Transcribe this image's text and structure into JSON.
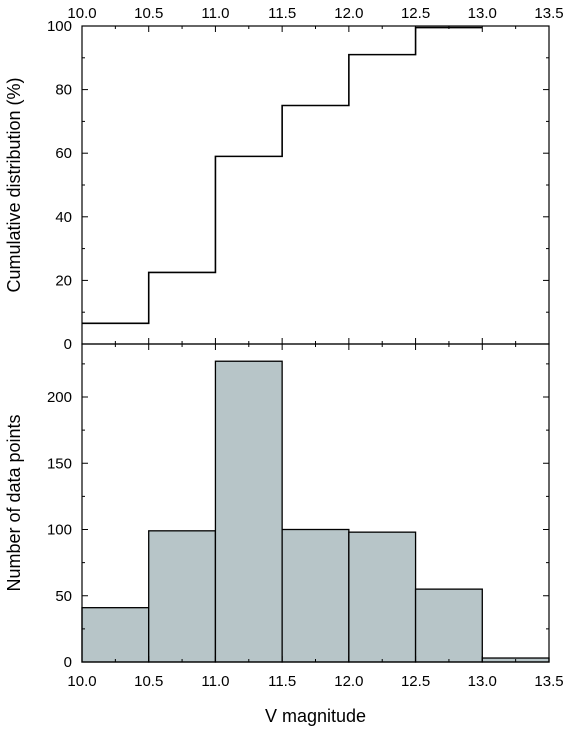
{
  "chart_data": [
    {
      "type": "line",
      "step": true,
      "title": "",
      "xlabel": "",
      "ylabel": "Cumulative distribution (%)",
      "xlim": [
        10.0,
        13.5
      ],
      "ylim": [
        0,
        100
      ],
      "xticks": [
        "10.0",
        "10.5",
        "11.0",
        "11.5",
        "12.0",
        "12.5",
        "13.0",
        "13.5"
      ],
      "yticks": [
        "0",
        "20",
        "40",
        "60",
        "80",
        "100"
      ],
      "bin_edges": [
        10.0,
        10.5,
        11.0,
        11.5,
        12.0,
        12.5,
        13.0
      ],
      "values": [
        6.5,
        22.5,
        59,
        75,
        91,
        99.5
      ],
      "line_color": "#000000",
      "grid": false,
      "legend": "none"
    },
    {
      "type": "bar",
      "histogram": true,
      "title": "",
      "xlabel": "V magnitude",
      "ylabel": "Number of data points",
      "xlim": [
        10.0,
        13.5
      ],
      "ylim": [
        0,
        240
      ],
      "xticks": [
        "10.0",
        "10.5",
        "11.0",
        "11.5",
        "12.0",
        "12.5",
        "13.0",
        "13.5"
      ],
      "yticks": [
        "0",
        "50",
        "100",
        "150",
        "200"
      ],
      "bin_edges": [
        10.0,
        10.5,
        11.0,
        11.5,
        12.0,
        12.5,
        13.0,
        13.5
      ],
      "values": [
        41,
        99,
        227,
        100,
        98,
        55,
        3
      ],
      "bar_color": "#b7c5c8",
      "edge_color": "#000000",
      "grid": false,
      "legend": "none"
    }
  ]
}
